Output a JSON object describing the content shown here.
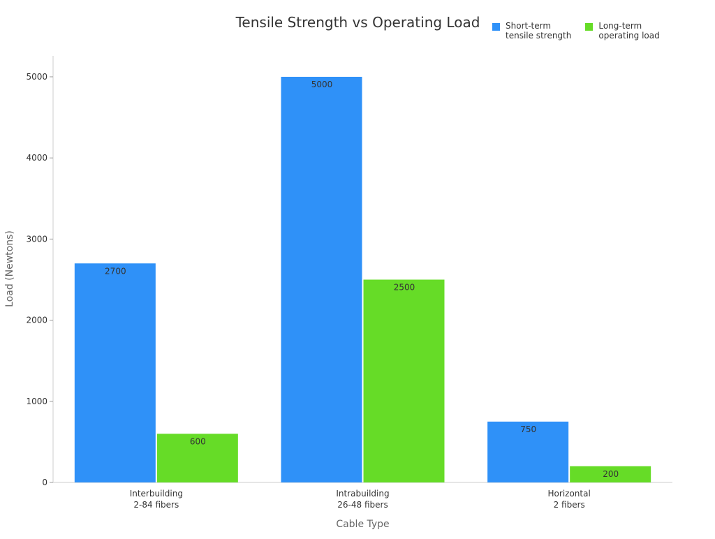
{
  "chart_data": {
    "type": "bar",
    "title": "Tensile Strength vs Operating Load",
    "xlabel": "Cable Type",
    "ylabel": "Load (Newtons)",
    "categories": [
      "Interbuilding\n2-84 fibers",
      "Intrabuilding\n26-48 fibers",
      "Horizontal\n2 fibers"
    ],
    "series": [
      {
        "name": "Short-term\ntensile strength",
        "values": [
          2700,
          5000,
          750
        ],
        "color": "#2f91f8"
      },
      {
        "name": "Long-term\noperating load",
        "values": [
          600,
          2500,
          200
        ],
        "color": "#66dc27"
      }
    ],
    "ylim": [
      0,
      5250
    ],
    "yticks": [
      0,
      1000,
      2000,
      3000,
      4000,
      5000
    ],
    "grid": false,
    "legend": "top-right",
    "data_labels": true
  }
}
